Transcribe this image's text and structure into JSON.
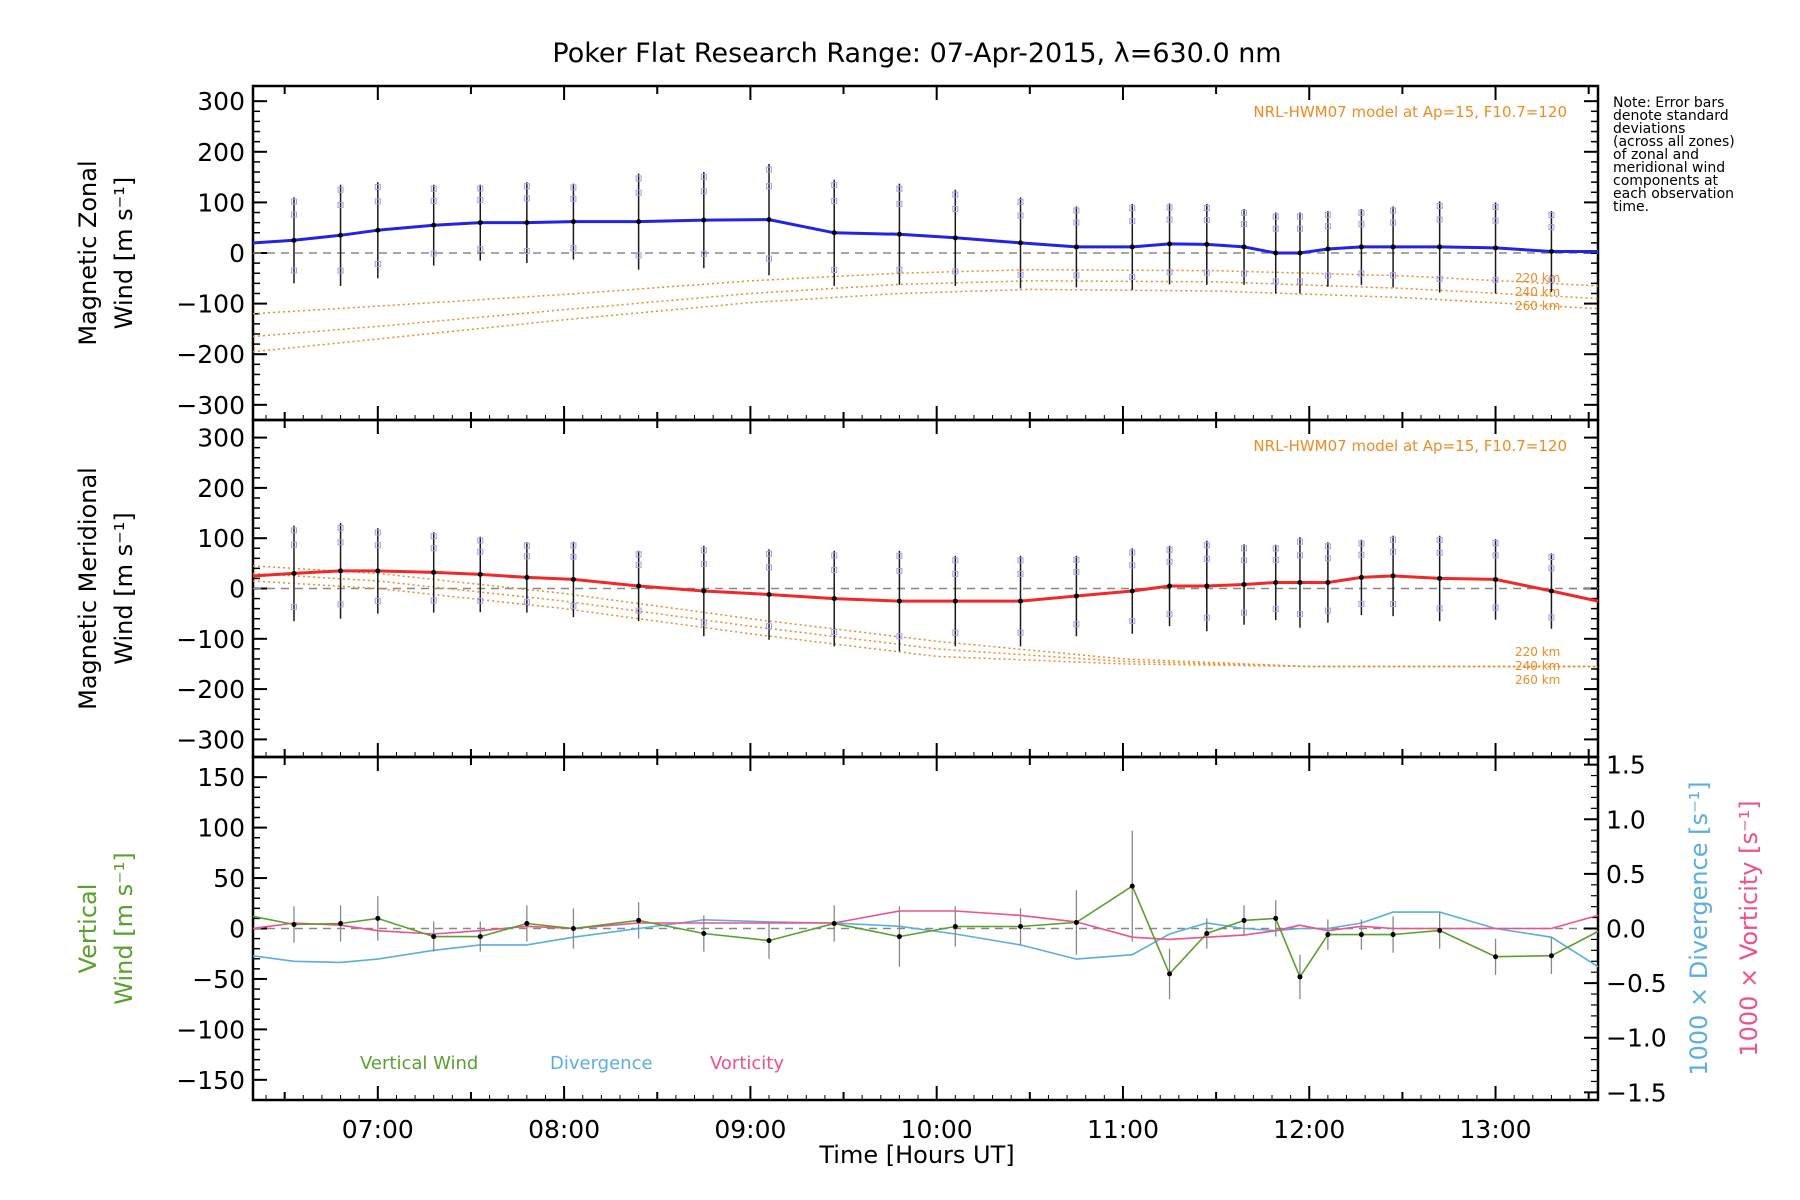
{
  "title": "Poker Flat Research Range: 07-Apr-2015, λ=630.0 nm",
  "note": [
    "Note: Error bars",
    "denote standard",
    "deviations",
    "(across all zones)",
    "of zonal and",
    "meridional wind",
    "components at",
    "each observation",
    "time."
  ],
  "xlabel": "Time [Hours UT]",
  "x_ticks": [
    "07:00",
    "08:00",
    "09:00",
    "10:00",
    "11:00",
    "12:00",
    "13:00"
  ],
  "colors": {
    "zonal": "#2323e6",
    "meridional": "#f02828",
    "model": "#f08a24",
    "vertical": "#5aa02c",
    "divergence": "#5aaee0",
    "vorticity": "#f0508c",
    "errorbar": "#1a1a1a",
    "zone_markers": "#a0a0e8"
  },
  "chart_data": [
    {
      "id": "zonal",
      "type": "line",
      "ylabel": [
        "Magnetic Zonal",
        "Wind [m s⁻¹]"
      ],
      "model_label": "NRL-HWM07 model at Ap=15, F10.7=120",
      "model_heights": [
        "220 km",
        "240 km",
        "260 km"
      ],
      "ylim": [
        -330,
        330
      ],
      "y_ticks": [
        300,
        200,
        100,
        0,
        -100,
        -200,
        -300
      ],
      "y_tick_labels": [
        "300",
        "200",
        "100",
        "0",
        "−100",
        "−200",
        "−300"
      ],
      "x": [
        6.33,
        6.55,
        6.8,
        7.0,
        7.3,
        7.55,
        7.8,
        8.05,
        8.4,
        8.75,
        9.1,
        9.45,
        9.8,
        10.1,
        10.45,
        10.75,
        11.05,
        11.25,
        11.45,
        11.65,
        11.82,
        11.95,
        12.1,
        12.28,
        12.45,
        12.7,
        13.0,
        13.3,
        13.55
      ],
      "series": [
        {
          "values": [
            20,
            25,
            35,
            45,
            55,
            60,
            60,
            62,
            62,
            65,
            66,
            40,
            37,
            30,
            20,
            12,
            12,
            18,
            17,
            12,
            0,
            0,
            8,
            12,
            12,
            12,
            10,
            3,
            3
          ]
        }
      ],
      "errorbars": [
        null,
        85,
        100,
        95,
        80,
        75,
        80,
        75,
        95,
        95,
        110,
        105,
        100,
        95,
        90,
        80,
        85,
        80,
        80,
        75,
        80,
        80,
        75,
        75,
        80,
        90,
        90,
        80,
        null
      ],
      "model_series": [
        {
          "name": "220 km",
          "x": [
            6.33,
            7.0,
            8.0,
            9.0,
            9.8,
            10.5,
            11.5,
            12.5,
            13.55
          ],
          "values": [
            -120,
            -105,
            -82,
            -55,
            -40,
            -33,
            -35,
            -45,
            -65
          ]
        },
        {
          "name": "240 km",
          "x": [
            6.33,
            7.0,
            8.0,
            9.0,
            9.8,
            10.5,
            11.5,
            12.5,
            13.55
          ],
          "values": [
            -165,
            -145,
            -112,
            -80,
            -62,
            -55,
            -57,
            -70,
            -90
          ]
        },
        {
          "name": "260 km",
          "x": [
            6.33,
            7.0,
            8.0,
            9.0,
            9.8,
            10.5,
            11.5,
            12.5,
            13.55
          ],
          "values": [
            -195,
            -170,
            -132,
            -98,
            -80,
            -72,
            -75,
            -88,
            -110
          ]
        }
      ]
    },
    {
      "id": "meridional",
      "type": "line",
      "ylabel": [
        "Magnetic Meridional",
        "Wind [m s⁻¹]"
      ],
      "model_label": "NRL-HWM07 model at Ap=15, F10.7=120",
      "model_heights": [
        "220 km",
        "240 km",
        "260 km"
      ],
      "ylim": [
        -335,
        335
      ],
      "y_ticks": [
        300,
        200,
        100,
        0,
        -100,
        -200,
        -300
      ],
      "y_tick_labels": [
        "300",
        "200",
        "100",
        "0",
        "−100",
        "−200",
        "−300"
      ],
      "x": [
        6.33,
        6.55,
        6.8,
        7.0,
        7.3,
        7.55,
        7.8,
        8.05,
        8.4,
        8.75,
        9.1,
        9.45,
        9.8,
        10.1,
        10.45,
        10.75,
        11.05,
        11.25,
        11.45,
        11.65,
        11.82,
        11.95,
        12.1,
        12.28,
        12.45,
        12.7,
        13.0,
        13.3,
        13.55
      ],
      "series": [
        {
          "values": [
            25,
            30,
            35,
            35,
            32,
            28,
            22,
            18,
            5,
            -5,
            -12,
            -20,
            -25,
            -25,
            -25,
            -15,
            -5,
            5,
            5,
            8,
            12,
            12,
            12,
            22,
            25,
            20,
            18,
            -5,
            -25
          ]
        }
      ],
      "errorbars": [
        null,
        95,
        95,
        85,
        80,
        75,
        70,
        75,
        70,
        90,
        90,
        95,
        100,
        90,
        90,
        80,
        85,
        80,
        90,
        80,
        75,
        90,
        80,
        75,
        80,
        85,
        80,
        75,
        null
      ],
      "model_series": [
        {
          "name": "220 km",
          "x": [
            6.33,
            7.0,
            8.0,
            9.0,
            10.0,
            11.0,
            12.0,
            13.0,
            13.55
          ],
          "values": [
            45,
            30,
            -10,
            -60,
            -105,
            -140,
            -155,
            -155,
            -155
          ]
        },
        {
          "name": "240 km",
          "x": [
            6.33,
            7.0,
            8.0,
            9.0,
            10.0,
            11.0,
            12.0,
            13.0,
            13.55
          ],
          "values": [
            30,
            15,
            -25,
            -75,
            -120,
            -145,
            -155,
            -155,
            -155
          ]
        },
        {
          "name": "260 km",
          "x": [
            6.33,
            7.0,
            8.0,
            9.0,
            10.0,
            11.0,
            12.0,
            13.0,
            13.55
          ],
          "values": [
            15,
            0,
            -40,
            -90,
            -135,
            -150,
            -155,
            -155,
            -155
          ]
        }
      ]
    },
    {
      "id": "vertical",
      "type": "line",
      "ylabel": [
        "Vertical",
        "Wind [m s⁻¹]"
      ],
      "ylabel_right_1": "1000 × Divergence [s⁻¹]",
      "ylabel_right_2": "1000 × Vorticity [s⁻¹]",
      "ylim": [
        -170,
        170
      ],
      "y_ticks": [
        150,
        100,
        50,
        0,
        -50,
        -100,
        -150
      ],
      "y_tick_labels": [
        "150",
        "100",
        "50",
        "0",
        "−50",
        "−100",
        "−150"
      ],
      "y2lim": [
        -1.57,
        1.57
      ],
      "y2_ticks": [
        1.5,
        1.0,
        0.5,
        0.0,
        -0.5,
        -1.0,
        -1.5
      ],
      "y2_tick_labels": [
        "1.5",
        "1.0",
        "0.5",
        "0.0",
        "−0.5",
        "−1.0",
        "−1.5"
      ],
      "legend": [
        "Vertical Wind",
        "Divergence",
        "Vorticity"
      ],
      "series": [
        {
          "name": "Vertical Wind",
          "x": [
            6.33,
            6.55,
            6.8,
            7.0,
            7.3,
            7.55,
            7.8,
            8.05,
            8.4,
            8.75,
            9.1,
            9.45,
            9.8,
            10.1,
            10.45,
            10.75,
            11.05,
            11.25,
            11.45,
            11.65,
            11.82,
            11.95,
            12.1,
            12.28,
            12.45,
            12.7,
            13.0,
            13.3,
            13.55
          ],
          "values": [
            12,
            4,
            5,
            10,
            -8,
            -8,
            5,
            0,
            8,
            -5,
            -12,
            5,
            -8,
            2,
            2,
            6,
            42,
            -45,
            -5,
            8,
            10,
            -48,
            -6,
            -6,
            -6,
            -2,
            -28,
            -27,
            -3
          ],
          "errorbars": [
            null,
            18,
            18,
            22,
            15,
            15,
            18,
            20,
            18,
            18,
            18,
            18,
            30,
            20,
            18,
            32,
            55,
            25,
            15,
            15,
            18,
            22,
            15,
            15,
            18,
            18,
            18,
            18,
            null
          ]
        },
        {
          "name": "Divergence",
          "x": [
            6.33,
            6.55,
            6.8,
            7.0,
            7.3,
            7.55,
            7.8,
            8.05,
            8.4,
            8.75,
            9.1,
            9.45,
            9.8,
            10.1,
            10.45,
            10.75,
            11.05,
            11.25,
            11.45,
            11.65,
            11.82,
            11.95,
            12.1,
            12.28,
            12.45,
            12.7,
            13.0,
            13.3,
            13.55
          ],
          "values": [
            -0.25,
            -0.3,
            -0.31,
            -0.28,
            -0.2,
            -0.15,
            -0.15,
            -0.08,
            0.0,
            0.08,
            0.06,
            0.05,
            0.02,
            -0.05,
            -0.15,
            -0.28,
            -0.24,
            -0.05,
            0.05,
            0.0,
            -0.02,
            0.0,
            0.0,
            0.05,
            0.15,
            0.15,
            0.0,
            -0.08,
            -0.35
          ]
        },
        {
          "name": "Vorticity",
          "x": [
            6.33,
            6.55,
            6.8,
            7.0,
            7.3,
            7.55,
            7.8,
            8.05,
            8.4,
            8.75,
            9.1,
            9.45,
            9.8,
            10.1,
            10.45,
            10.75,
            11.05,
            11.25,
            11.45,
            11.65,
            11.82,
            11.95,
            12.1,
            12.28,
            12.45,
            12.7,
            13.0,
            13.3,
            13.55
          ],
          "values": [
            0.0,
            0.05,
            0.03,
            -0.02,
            -0.05,
            -0.02,
            0.02,
            0.0,
            0.05,
            0.05,
            0.05,
            0.05,
            0.16,
            0.16,
            0.12,
            0.06,
            -0.08,
            -0.1,
            -0.08,
            -0.06,
            -0.02,
            0.03,
            -0.02,
            0.02,
            0.0,
            0.0,
            0.0,
            0.0,
            0.12
          ]
        }
      ]
    }
  ]
}
